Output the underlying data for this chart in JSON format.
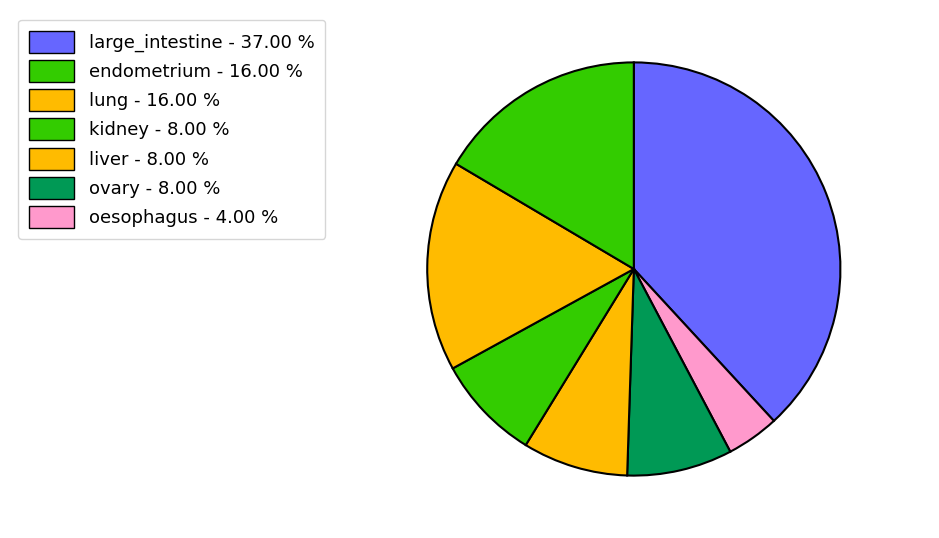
{
  "labels": [
    "large_intestine",
    "oesophagus",
    "ovary",
    "liver",
    "kidney",
    "lung",
    "endometrium"
  ],
  "values": [
    37.0,
    4.0,
    8.0,
    8.0,
    8.0,
    16.0,
    16.0
  ],
  "colors": [
    "#6666ff",
    "#ff99cc",
    "#009955",
    "#ffbb00",
    "#33cc00",
    "#ffbb00",
    "#33cc00"
  ],
  "legend_labels": [
    "large_intestine - 37.00 %",
    "endometrium - 16.00 %",
    "lung - 16.00 %",
    "kidney - 8.00 %",
    "liver - 8.00 %",
    "ovary - 8.00 %",
    "oesophagus - 4.00 %"
  ],
  "legend_colors": [
    "#6666ff",
    "#33cc00",
    "#ffbb00",
    "#33cc00",
    "#ffbb00",
    "#009955",
    "#ff99cc"
  ],
  "startangle": 90,
  "figsize": [
    9.39,
    5.38
  ],
  "dpi": 100
}
